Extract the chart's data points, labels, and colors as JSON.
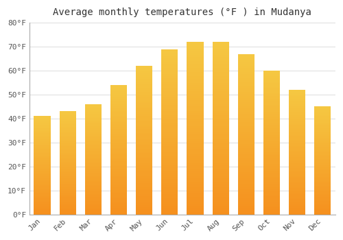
{
  "title": "Average monthly temperatures (°F ) in Mudanya",
  "months": [
    "Jan",
    "Feb",
    "Mar",
    "Apr",
    "May",
    "Jun",
    "Jul",
    "Aug",
    "Sep",
    "Oct",
    "Nov",
    "Dec"
  ],
  "values": [
    41,
    43,
    46,
    54,
    62,
    69,
    72,
    72,
    67,
    60,
    52,
    45
  ],
  "bar_color_top": "#F5C842",
  "bar_color_bottom": "#F5901E",
  "background_color": "#FFFFFF",
  "grid_color": "#DDDDDD",
  "ylim": [
    0,
    80
  ],
  "yticks": [
    0,
    10,
    20,
    30,
    40,
    50,
    60,
    70,
    80
  ],
  "ytick_labels": [
    "0°F",
    "10°F",
    "20°F",
    "30°F",
    "40°F",
    "50°F",
    "60°F",
    "70°F",
    "80°F"
  ],
  "title_fontsize": 10,
  "tick_fontsize": 8,
  "bar_width": 0.65,
  "spine_color": "#AAAAAA"
}
